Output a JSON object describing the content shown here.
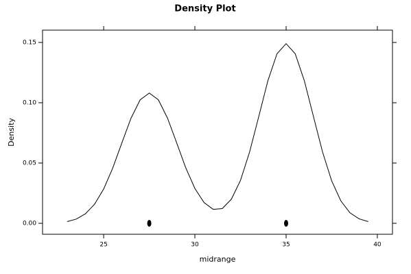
{
  "chart_data": {
    "type": "density",
    "title": "Density Plot",
    "x_label": "midrange",
    "y_label": "Density",
    "x": [
      23.0,
      23.5,
      24.0,
      24.5,
      25.0,
      25.5,
      26.0,
      26.5,
      27.0,
      27.5,
      28.0,
      28.5,
      29.0,
      29.5,
      30.0,
      30.5,
      31.0,
      31.5,
      32.0,
      32.5,
      33.0,
      33.5,
      34.0,
      34.5,
      35.0,
      35.5,
      36.0,
      36.5,
      37.0,
      37.5,
      38.0,
      38.5,
      39.0,
      39.5
    ],
    "values": [
      0.0014,
      0.0035,
      0.0079,
      0.0158,
      0.0284,
      0.0459,
      0.0668,
      0.0872,
      0.1024,
      0.108,
      0.1024,
      0.0872,
      0.0668,
      0.046,
      0.0289,
      0.0172,
      0.0116,
      0.0122,
      0.02,
      0.0356,
      0.0592,
      0.0885,
      0.1182,
      0.1406,
      0.149,
      0.1406,
      0.1182,
      0.0885,
      0.059,
      0.0351,
      0.0186,
      0.0087,
      0.0037,
      0.0014
    ],
    "points": {
      "x": [
        27.5,
        35
      ],
      "values": [
        0,
        0
      ]
    },
    "color": "#000000",
    "xlim": [
      21.65,
      40.83
    ],
    "ylim": [
      -0.0091,
      0.1602
    ],
    "xticks": [
      25,
      30,
      35,
      40
    ],
    "yticks": [
      {
        "value": 0,
        "label": "0.00"
      },
      {
        "value": 0.05,
        "label": "0.05"
      },
      {
        "value": 0.1,
        "label": "0.10"
      },
      {
        "value": 0.15,
        "label": "0.15"
      }
    ]
  }
}
